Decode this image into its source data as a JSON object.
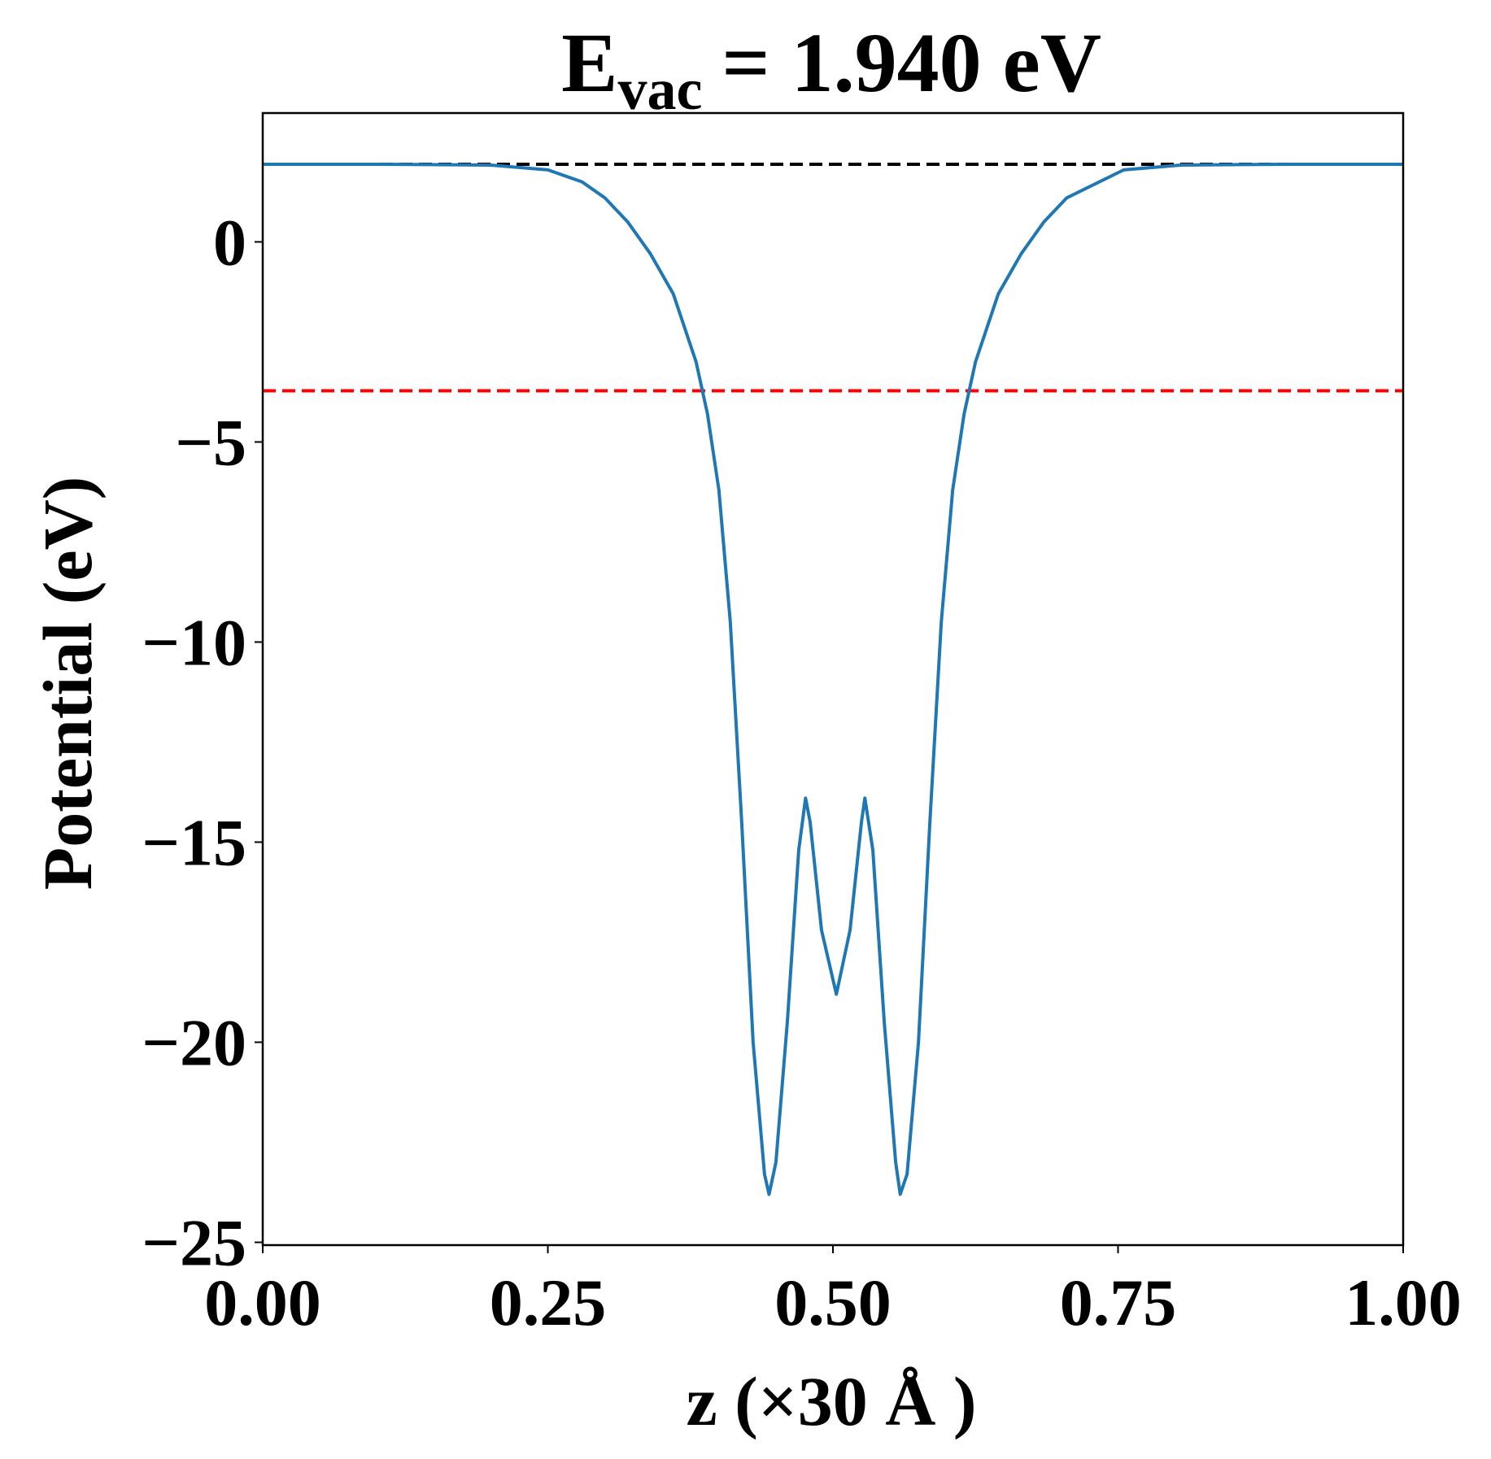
{
  "chart_data": {
    "type": "line",
    "title": {
      "main": "E",
      "subscript": "vac",
      "rest": "= 1.940 eV"
    },
    "x_label": "z (×30 Å )",
    "y_label": "Potential (eV)",
    "x": [
      0,
      0.1,
      0.2,
      0.25,
      0.28,
      0.3,
      0.32,
      0.34,
      0.36,
      0.38,
      0.39,
      0.4,
      0.41,
      0.42,
      0.43,
      0.44,
      0.444,
      0.45,
      0.46,
      0.47,
      0.476,
      0.48,
      0.49,
      0.503,
      0.515,
      0.525,
      0.528,
      0.535,
      0.545,
      0.555,
      0.559,
      0.565,
      0.575,
      0.585,
      0.595,
      0.605,
      0.615,
      0.625,
      0.645,
      0.665,
      0.685,
      0.705,
      0.755,
      0.805,
      0.9,
      1.0
    ],
    "series": [
      {
        "color": "#1f77b4",
        "values": [
          1.94,
          1.94,
          1.92,
          1.8,
          1.5,
          1.1,
          0.5,
          -0.3,
          -1.3,
          -3.0,
          -4.3,
          -6.2,
          -9.5,
          -14.5,
          -20,
          -23.3,
          -23.8,
          -23.0,
          -19.5,
          -15.2,
          -13.9,
          -14.5,
          -17.2,
          -18.8,
          -17.2,
          -14.5,
          -13.9,
          -15.2,
          -19.5,
          -23.0,
          -23.8,
          -23.3,
          -20,
          -14.5,
          -9.5,
          -6.2,
          -4.3,
          -3.0,
          -1.3,
          -0.3,
          0.5,
          1.1,
          1.8,
          1.92,
          1.94,
          1.94
        ]
      }
    ],
    "reference_lines": [
      {
        "value": 1.94,
        "color": "#000000"
      },
      {
        "value": -3.72,
        "color": "#ff0000"
      }
    ],
    "xlim": [
      0,
      1
    ],
    "ylim": [
      -25.07,
      3.22
    ],
    "xticks": [
      {
        "value": 0,
        "label": "0.00"
      },
      {
        "value": 0.25,
        "label": "0.25"
      },
      {
        "value": 0.5,
        "label": "0.50"
      },
      {
        "value": 0.75,
        "label": "0.75"
      },
      {
        "value": 1,
        "label": "1.00"
      }
    ],
    "yticks": [
      {
        "value": -25,
        "label": "−25"
      },
      {
        "value": -20,
        "label": "−20"
      },
      {
        "value": -15,
        "label": "−15"
      },
      {
        "value": -10,
        "label": "−10"
      },
      {
        "value": -5,
        "label": "−5"
      },
      0
    ],
    "grid": false
  }
}
